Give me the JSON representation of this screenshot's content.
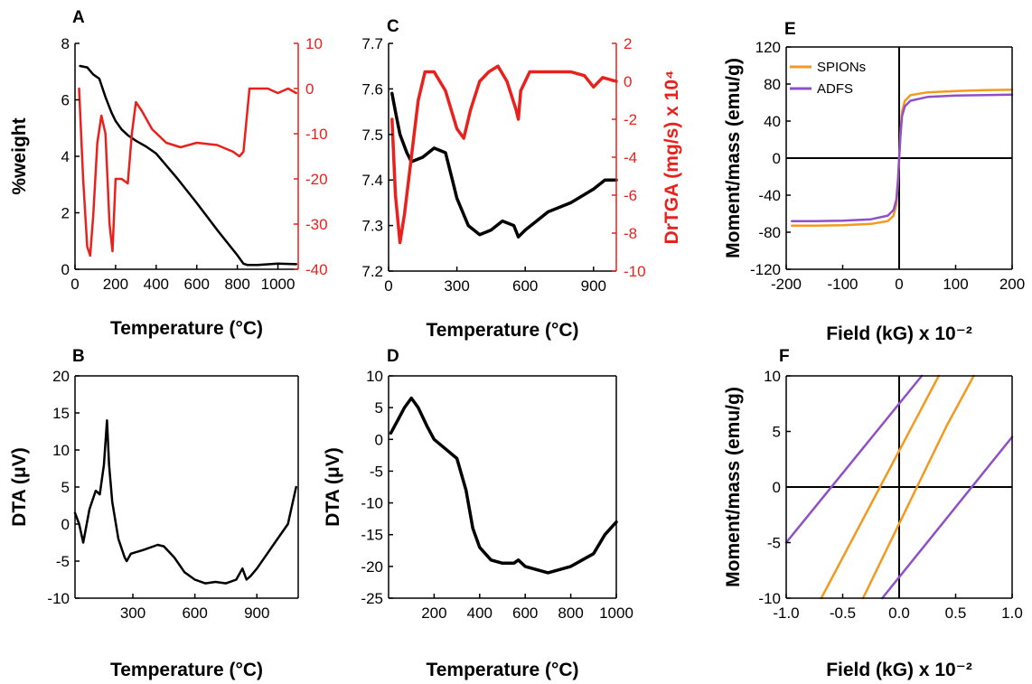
{
  "figure": {
    "panels": [
      "A",
      "B",
      "C",
      "D",
      "E",
      "F"
    ]
  },
  "colors": {
    "black": "#000000",
    "red": "#e8211c",
    "orange": "#f39a1e",
    "purple": "#8f4fc9"
  },
  "chart_data": [
    {
      "panel": "A",
      "type": "line",
      "xlabel": "Temperature (°C)",
      "ylabel_left": "%weight",
      "ylabel_right": "",
      "xlim": [
        0,
        1100
      ],
      "ylim_left": [
        0,
        8
      ],
      "ylim_right": [
        -40,
        10
      ],
      "xticks": [
        "0",
        "200",
        "400",
        "600",
        "800",
        "1000"
      ],
      "yticks_left": [
        "0",
        "2",
        "4",
        "6",
        "8"
      ],
      "yticks_right": [
        "-40",
        "-30",
        "-20",
        "-10",
        "0",
        "10"
      ],
      "series": [
        {
          "axis": "left",
          "color": "black",
          "x": [
            25,
            60,
            90,
            120,
            150,
            180,
            200,
            230,
            260,
            300,
            350,
            400,
            500,
            600,
            700,
            800,
            830,
            850,
            900,
            1000,
            1090
          ],
          "y": [
            7.2,
            7.15,
            6.9,
            6.75,
            6.1,
            5.55,
            5.25,
            4.95,
            4.75,
            4.55,
            4.35,
            4.1,
            3.25,
            2.35,
            1.4,
            0.5,
            0.2,
            0.15,
            0.15,
            0.2,
            0.18
          ]
        },
        {
          "axis": "right",
          "color": "red",
          "x": [
            20,
            40,
            60,
            75,
            90,
            110,
            130,
            150,
            170,
            185,
            200,
            230,
            260,
            280,
            300,
            330,
            380,
            450,
            520,
            600,
            700,
            780,
            810,
            830,
            860,
            900,
            950,
            1000,
            1050,
            1090
          ],
          "y": [
            0,
            -20,
            -35,
            -37,
            -28,
            -12,
            -6,
            -10,
            -30,
            -36,
            -20,
            -20,
            -21,
            -10,
            -3,
            -5,
            -9,
            -12,
            -13,
            -12,
            -12.5,
            -14,
            -15,
            -14,
            0,
            0,
            0,
            -1,
            0,
            -1
          ]
        }
      ]
    },
    {
      "panel": "B",
      "type": "line",
      "xlabel": "Temperature (°C)",
      "ylabel": "DTA (μV)",
      "xlim": [
        20,
        1100
      ],
      "ylim": [
        -10,
        20
      ],
      "xticks": [
        "300",
        "600",
        "900"
      ],
      "yticks": [
        "-10",
        "-5",
        "0",
        "5",
        "10",
        "15",
        "20"
      ],
      "series": [
        {
          "color": "black",
          "x": [
            20,
            40,
            60,
            90,
            120,
            140,
            160,
            175,
            185,
            200,
            230,
            260,
            270,
            290,
            350,
            420,
            450,
            500,
            550,
            600,
            650,
            700,
            750,
            800,
            830,
            850,
            870,
            900,
            950,
            1000,
            1050,
            1090
          ],
          "y": [
            1.5,
            0,
            -2.5,
            2,
            4.5,
            4,
            8,
            14,
            8,
            3,
            -2,
            -4.5,
            -5,
            -4,
            -3.5,
            -2.8,
            -3,
            -4.5,
            -6.5,
            -7.5,
            -8,
            -7.8,
            -8,
            -7.5,
            -6,
            -7.5,
            -7,
            -6,
            -4,
            -2,
            0,
            5
          ]
        }
      ]
    },
    {
      "panel": "C",
      "type": "line",
      "xlabel": "Temperature (°C)",
      "ylabel_left": "",
      "ylabel_right": "DrTGA (mg/s) x 10⁴",
      "xlim": [
        0,
        1000
      ],
      "ylim_left": [
        7.2,
        7.7
      ],
      "ylim_right": [
        -10,
        2
      ],
      "xticks": [
        "0",
        "300",
        "600",
        "900"
      ],
      "yticks_left": [
        "7.2",
        "7.3",
        "7.4",
        "7.5",
        "7.6",
        "7.7"
      ],
      "yticks_right": [
        "-10",
        "-8",
        "-6",
        "-4",
        "-2",
        "0",
        "2"
      ],
      "series": [
        {
          "axis": "left",
          "color": "black",
          "x": [
            15,
            30,
            50,
            80,
            100,
            150,
            200,
            250,
            280,
            300,
            350,
            400,
            450,
            500,
            550,
            570,
            600,
            650,
            700,
            800,
            900,
            950,
            1000
          ],
          "y": [
            7.59,
            7.55,
            7.5,
            7.46,
            7.44,
            7.45,
            7.47,
            7.46,
            7.4,
            7.36,
            7.3,
            7.28,
            7.29,
            7.31,
            7.3,
            7.275,
            7.29,
            7.31,
            7.33,
            7.35,
            7.38,
            7.4,
            7.4
          ]
        },
        {
          "axis": "right",
          "color": "red",
          "x": [
            15,
            30,
            50,
            70,
            100,
            130,
            160,
            200,
            250,
            300,
            330,
            360,
            400,
            440,
            480,
            520,
            560,
            570,
            580,
            620,
            700,
            800,
            860,
            900,
            940,
            1000
          ],
          "y": [
            -2,
            -6,
            -8.5,
            -7,
            -4,
            -1,
            0.5,
            0.5,
            -0.5,
            -2.5,
            -3,
            -1.5,
            0,
            0.5,
            0.8,
            0,
            -1.5,
            -2,
            -0.5,
            0.5,
            0.5,
            0.5,
            0.3,
            -0.3,
            0.2,
            0
          ]
        }
      ]
    },
    {
      "panel": "D",
      "type": "line",
      "xlabel": "Temperature (°C)",
      "ylabel": "DTA (μV)",
      "xlim": [
        0,
        1000
      ],
      "ylim": [
        -25,
        10
      ],
      "xticks": [
        "200",
        "400",
        "600",
        "800",
        "1000"
      ],
      "yticks": [
        "-25",
        "-20",
        "-15",
        "-10",
        "-5",
        "0",
        "5",
        "10"
      ],
      "series": [
        {
          "color": "black",
          "x": [
            10,
            40,
            70,
            100,
            130,
            170,
            200,
            250,
            300,
            340,
            370,
            400,
            450,
            500,
            550,
            570,
            600,
            650,
            700,
            750,
            800,
            850,
            900,
            950,
            1000
          ],
          "y": [
            1,
            3,
            5,
            6.5,
            5,
            2,
            0,
            -1.5,
            -3,
            -8,
            -14,
            -17,
            -19,
            -19.5,
            -19.5,
            -19,
            -20,
            -20.5,
            -21,
            -20.5,
            -20,
            -19,
            -18,
            -15,
            -13
          ]
        }
      ]
    },
    {
      "panel": "E",
      "type": "line",
      "xlabel": "Field (kG) x 10⁻²",
      "ylabel": "Moment/mass (emu/g)",
      "xlim": [
        -200,
        200
      ],
      "ylim": [
        -120,
        120
      ],
      "xticks": [
        "-200",
        "-100",
        "0",
        "100",
        "200"
      ],
      "yticks": [
        "-120",
        "-80",
        "-40",
        "0",
        "40",
        "80",
        "120"
      ],
      "legend": [
        "SPIONs",
        "ADFS"
      ],
      "series": [
        {
          "name": "SPIONs",
          "color": "orange",
          "x": [
            -190,
            -150,
            -100,
            -50,
            -20,
            -10,
            -5,
            -2,
            0,
            2,
            5,
            10,
            20,
            50,
            100,
            150,
            200
          ],
          "y": [
            -73,
            -73,
            -72.5,
            -71,
            -68,
            -62,
            -50,
            -25,
            0,
            25,
            50,
            62,
            68,
            71,
            72.5,
            73.5,
            74
          ]
        },
        {
          "name": "ADFS",
          "color": "purple",
          "x": [
            -190,
            -150,
            -100,
            -50,
            -20,
            -10,
            -5,
            -2,
            0,
            2,
            5,
            10,
            20,
            50,
            100,
            150,
            200
          ],
          "y": [
            -68,
            -68,
            -67.5,
            -66,
            -62,
            -56,
            -45,
            -22,
            0,
            22,
            45,
            56,
            62,
            66,
            67.5,
            68,
            68.5
          ]
        }
      ]
    },
    {
      "panel": "F",
      "type": "line",
      "xlabel": "Field (kG) x 10⁻²",
      "ylabel": "Moment/mass (emu/g)",
      "xlim": [
        -1,
        1
      ],
      "ylim": [
        -10,
        10
      ],
      "xticks": [
        "-1.0",
        "-0.5",
        "0.0",
        "0.5",
        "1.0"
      ],
      "yticks": [
        "-10",
        "-5",
        "0",
        "5",
        "10"
      ],
      "series": [
        {
          "name": "SPIONs",
          "color": "orange",
          "x": [
            -0.69,
            0.35
          ],
          "y": [
            -10,
            10
          ]
        },
        {
          "name": "SPIONs",
          "color": "orange",
          "x": [
            -0.32,
            0.42,
            0.66
          ],
          "y": [
            -10,
            5.5,
            10
          ]
        },
        {
          "name": "ADFS",
          "color": "purple",
          "x": [
            -1.0,
            0.2
          ],
          "y": [
            -5,
            10
          ]
        },
        {
          "name": "ADFS",
          "color": "purple",
          "x": [
            -0.15,
            1.0
          ],
          "y": [
            -10,
            4.5
          ]
        }
      ]
    }
  ]
}
